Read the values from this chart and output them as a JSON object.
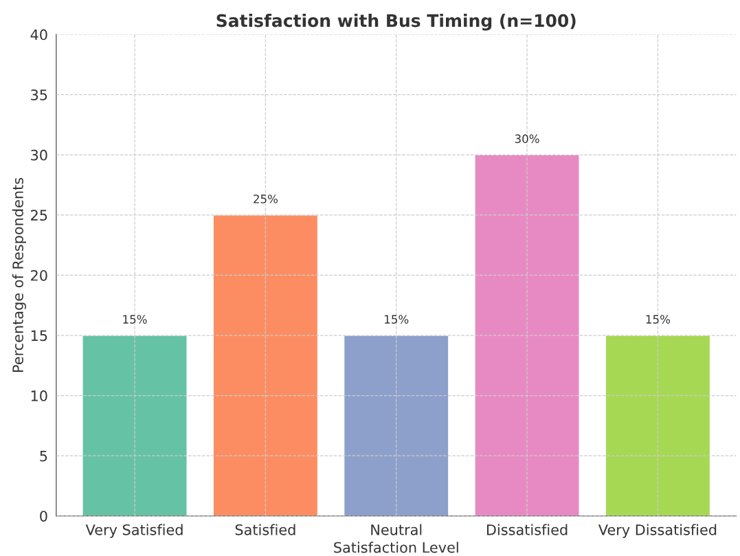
{
  "chart_data": {
    "type": "bar",
    "title": "Satisfaction with Bus Timing (n=100)",
    "xlabel": "Satisfaction Level",
    "ylabel": "Percentage of Respondents",
    "categories": [
      "Very Satisfied",
      "Satisfied",
      "Neutral",
      "Dissatisfied",
      "Very Dissatisfied"
    ],
    "values": [
      15,
      25,
      15,
      30,
      15
    ],
    "colors": [
      "#66c2a5",
      "#fc8d62",
      "#8da0cb",
      "#e78ac3",
      "#a6d854"
    ],
    "value_labels": [
      "15%",
      "25%",
      "15%",
      "30%",
      "15%"
    ],
    "ylim": [
      0,
      40
    ],
    "yticks": [
      0,
      5,
      10,
      15,
      20,
      25,
      30,
      35,
      40
    ],
    "grid": true
  }
}
